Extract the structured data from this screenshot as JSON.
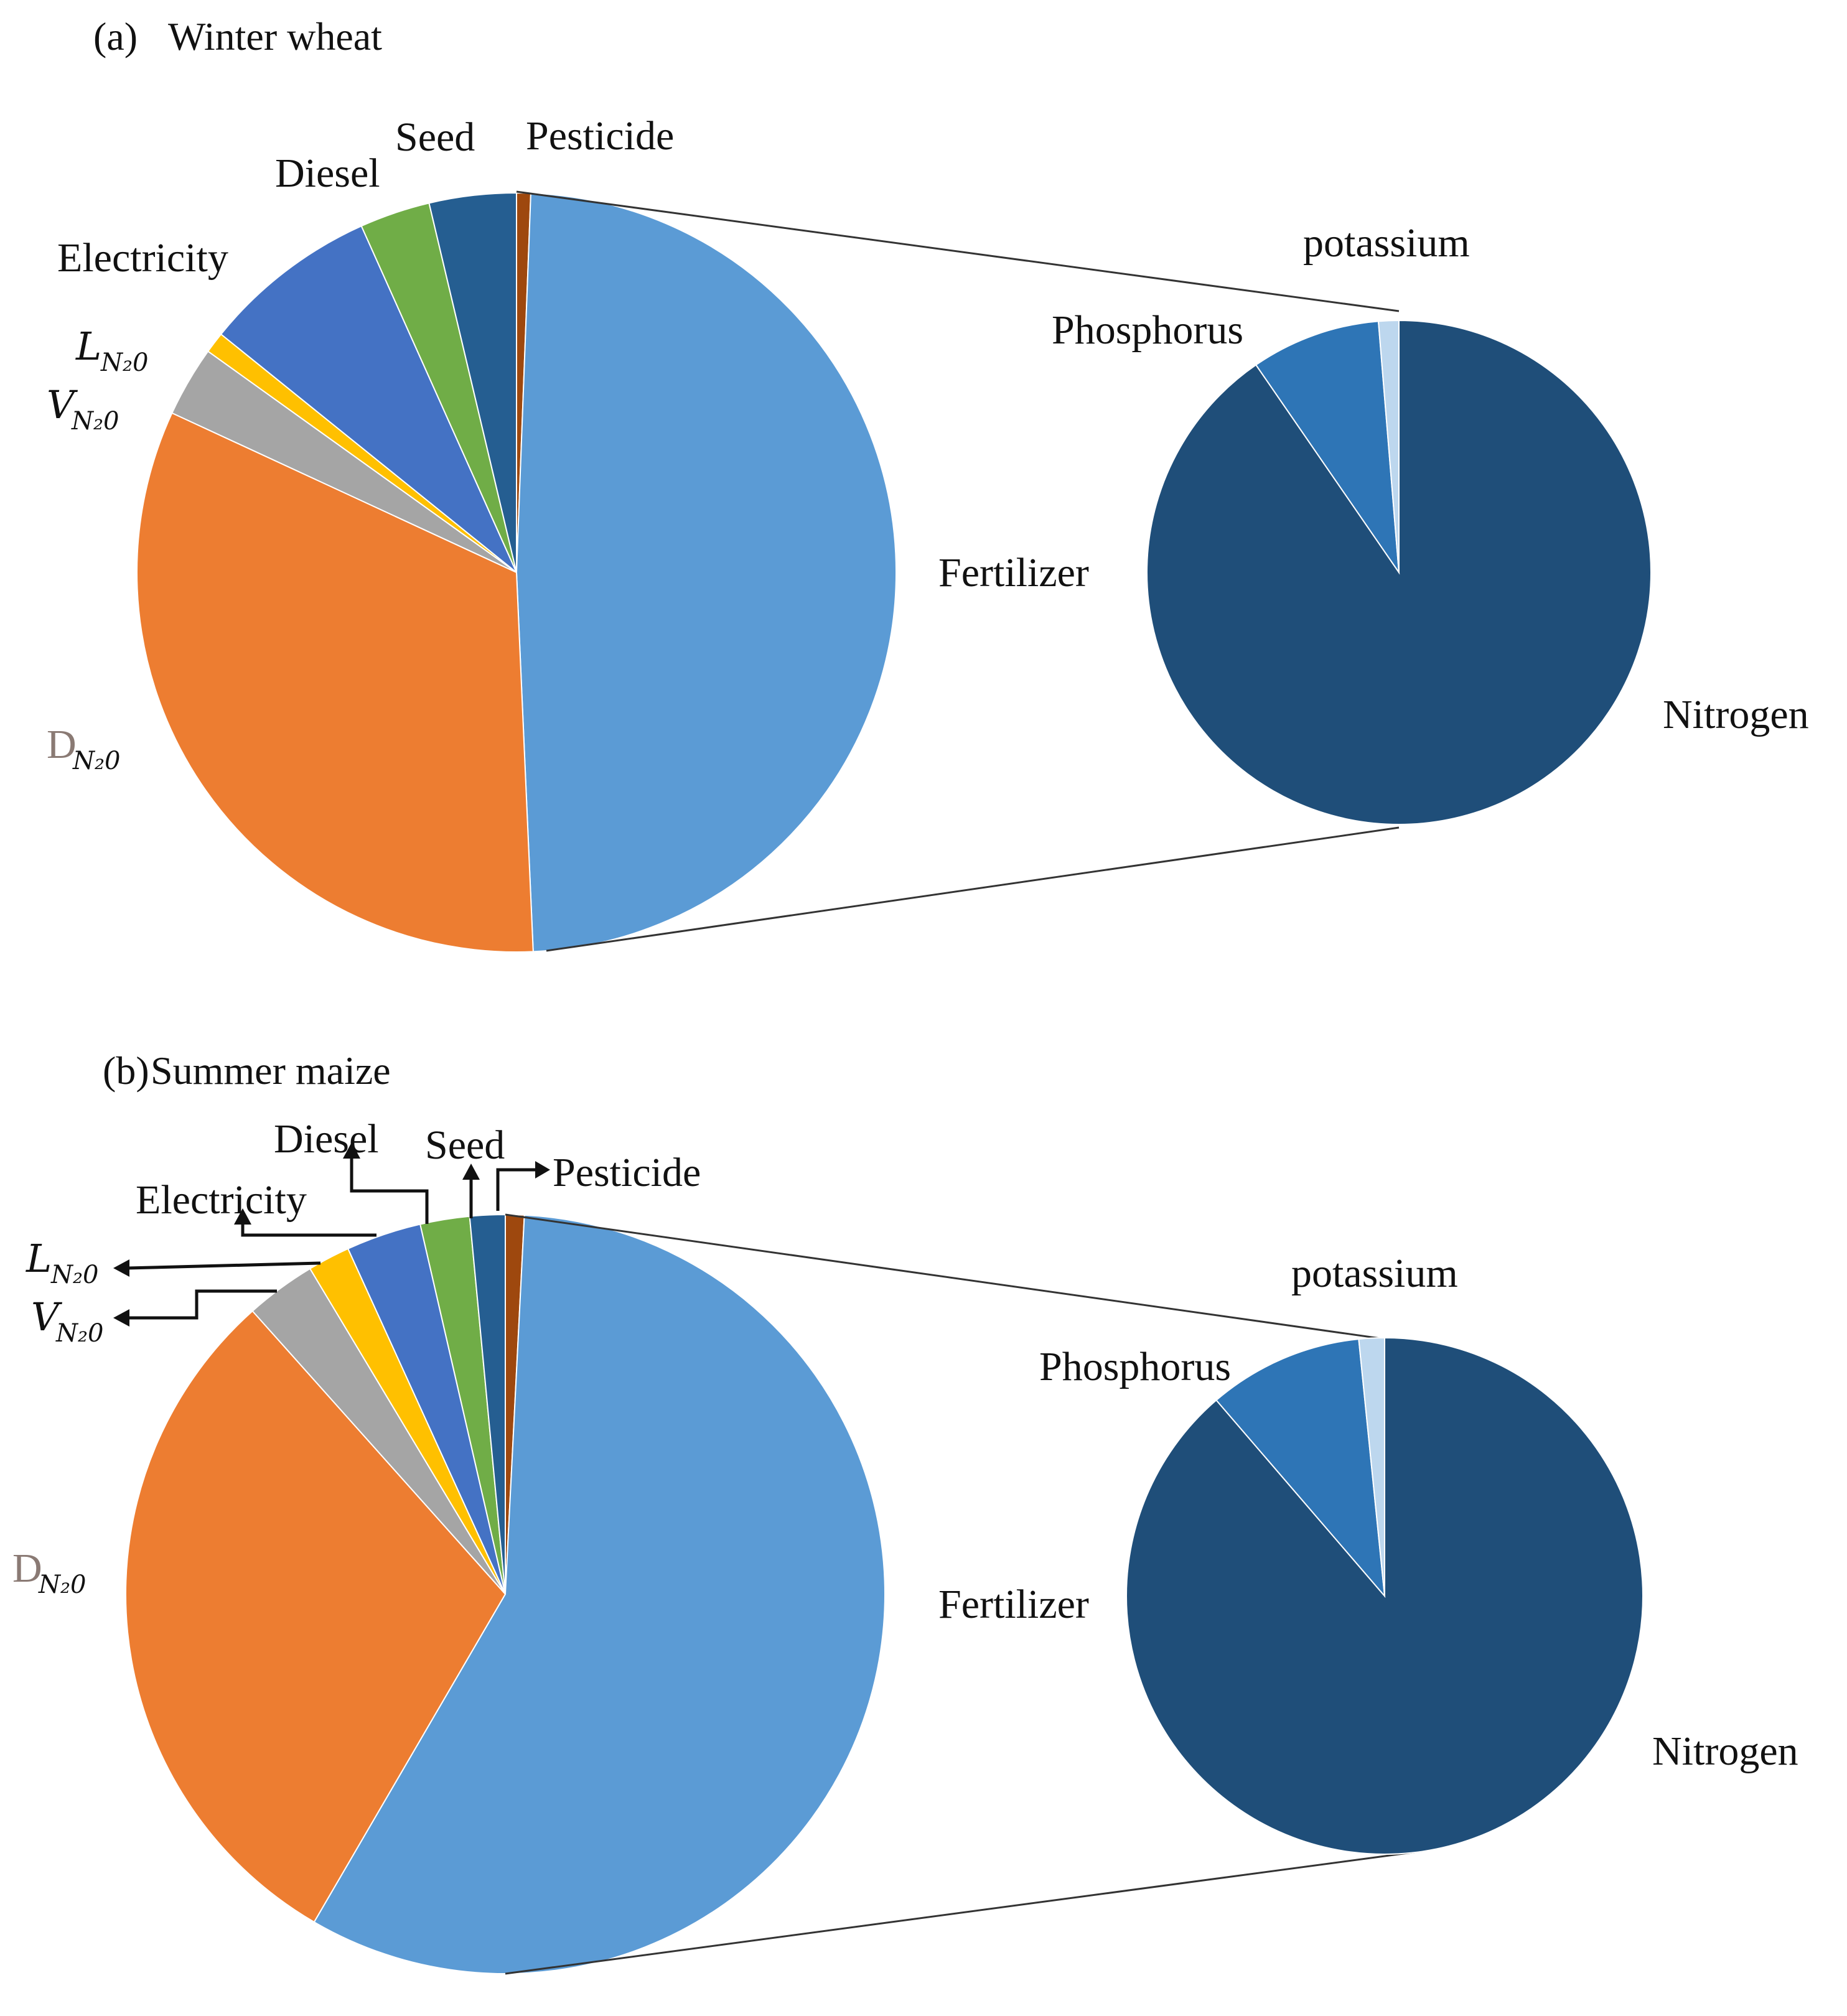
{
  "chart_data": [
    {
      "type": "pie",
      "panel": "(a)",
      "title": "Winter wheat",
      "slices": [
        {
          "label": "Pesticide",
          "value": 0.6,
          "color": "#9E480E"
        },
        {
          "label": "Fertilizer",
          "value": 48.7,
          "color": "#5B9BD5"
        },
        {
          "label": "D",
          "subscript": "N₂0",
          "value": 32.6,
          "color": "#ED7D31"
        },
        {
          "label": "V",
          "subscript": "N₂0",
          "value": 3.0,
          "color": "#A5A5A5"
        },
        {
          "label": "L",
          "subscript": "N₂0",
          "value": 0.9,
          "color": "#FFC000"
        },
        {
          "label": "Electricity",
          "value": 7.5,
          "color": "#4472C4"
        },
        {
          "label": "Diesel",
          "value": 3.0,
          "color": "#70AD47"
        },
        {
          "label": "Seed",
          "value": 3.7,
          "color": "#255E91"
        }
      ],
      "breakdown_of": "Fertilizer",
      "breakdown": [
        {
          "label": "Nitrogen",
          "value": 90.4,
          "color": "#1F4E79"
        },
        {
          "label": "Phosphorus",
          "value": 8.3,
          "color": "#2E75B6"
        },
        {
          "label": "potassium",
          "value": 1.3,
          "color": "#BDD7EE"
        }
      ]
    },
    {
      "type": "pie",
      "panel": "(b)",
      "title": "Summer maize",
      "slices": [
        {
          "label": "Pesticide",
          "value": 0.8,
          "color": "#9E480E"
        },
        {
          "label": "Fertilizer",
          "value": 57.6,
          "color": "#5B9BD5"
        },
        {
          "label": "D",
          "subscript": "N₂0",
          "value": 30.0,
          "color": "#ED7D31"
        },
        {
          "label": "V",
          "subscript": "N₂0",
          "value": 3.0,
          "color": "#A5A5A5"
        },
        {
          "label": "L",
          "subscript": "N₂0",
          "value": 1.8,
          "color": "#FFC000"
        },
        {
          "label": "Electricity",
          "value": 3.2,
          "color": "#4472C4"
        },
        {
          "label": "Diesel",
          "value": 2.1,
          "color": "#70AD47"
        },
        {
          "label": "Seed",
          "value": 1.5,
          "color": "#255E91"
        }
      ],
      "breakdown_of": "Fertilizer",
      "breakdown": [
        {
          "label": "Nitrogen",
          "value": 88.7,
          "color": "#1F4E79"
        },
        {
          "label": "Phosphorus",
          "value": 9.7,
          "color": "#2E75B6"
        },
        {
          "label": "potassium",
          "value": 1.6,
          "color": "#BDD7EE"
        }
      ]
    }
  ]
}
